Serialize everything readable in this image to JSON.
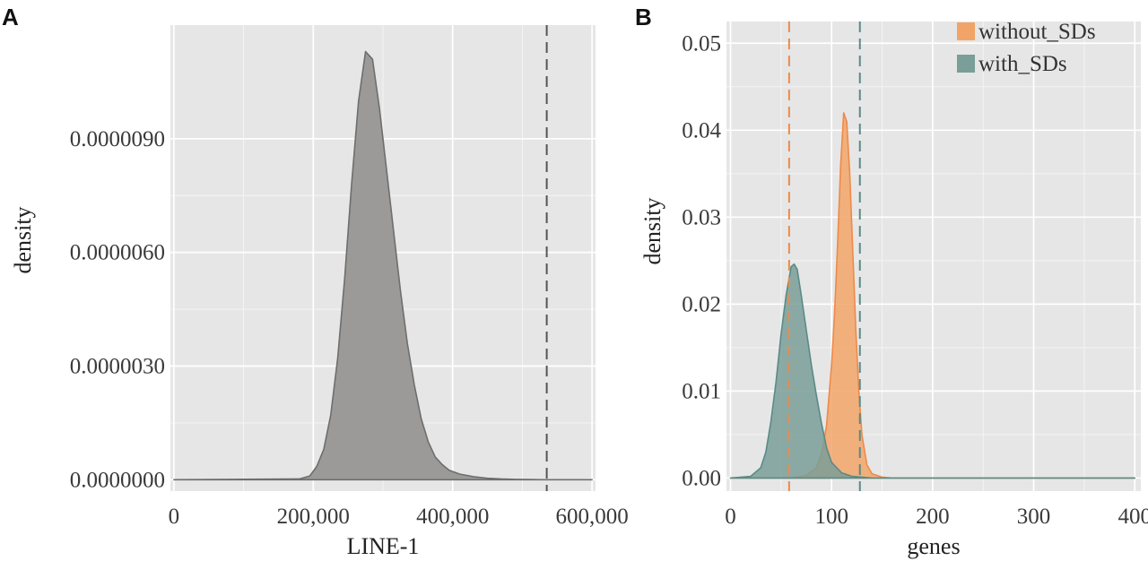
{
  "chart_data": [
    {
      "panel": "A",
      "type": "area",
      "title": "",
      "xlabel": "LINE-1",
      "ylabel": "density",
      "xlim": [
        -5000,
        605000
      ],
      "ylim": [
        -3e-07,
        1.2e-05
      ],
      "x_ticks": [
        0,
        200000,
        400000,
        600000
      ],
      "x_tick_labels": [
        "0",
        "200,000",
        "400,000",
        "600,000"
      ],
      "y_ticks": [
        0,
        3e-06,
        6e-06,
        9e-06
      ],
      "y_tick_labels": [
        "0.0000000",
        "0.0000030",
        "0.0000060",
        "0.0000090"
      ],
      "grid": true,
      "colors": {
        "fill": "#9b9a98",
        "line": "#6e6e6e",
        "vline": "#555555"
      },
      "vline": 535000,
      "series": [
        {
          "x": [
            0,
            180000,
            195000,
            205000,
            215000,
            225000,
            235000,
            245000,
            255000,
            265000,
            275000,
            285000,
            295000,
            305000,
            315000,
            325000,
            335000,
            345000,
            355000,
            365000,
            375000,
            385000,
            395000,
            410000,
            430000,
            450000,
            470000,
            490000,
            510000,
            530000,
            600000
          ],
          "y": [
            0,
            2e-08,
            1e-07,
            3.5e-07,
            8e-07,
            1.7e-06,
            3.2e-06,
            5.3e-06,
            7.8e-06,
            1e-05,
            1.13e-05,
            1.11e-05,
            9.8e-06,
            8.2e-06,
            6.6e-06,
            5e-06,
            3.6e-06,
            2.5e-06,
            1.6e-06,
            1e-06,
            6e-07,
            4e-07,
            2.5e-07,
            1.5e-07,
            8e-08,
            4e-08,
            2e-08,
            1e-08,
            5e-09,
            0,
            0
          ]
        }
      ]
    },
    {
      "panel": "B",
      "type": "area",
      "title": "",
      "xlabel": "genes",
      "ylabel": "density",
      "xlim": [
        -4,
        406
      ],
      "ylim": [
        -0.0015,
        0.0525
      ],
      "x_ticks": [
        0,
        100,
        200,
        300,
        400
      ],
      "x_tick_labels": [
        "0",
        "100",
        "200",
        "300",
        "400"
      ],
      "y_ticks": [
        0,
        0.01,
        0.02,
        0.03,
        0.04,
        0.05
      ],
      "y_tick_labels": [
        "0.00",
        "0.01",
        "0.02",
        "0.03",
        "0.04",
        "0.05"
      ],
      "grid": true,
      "legend": {
        "position": "top-right"
      },
      "series": [
        {
          "name": "without_SDs",
          "color": "#f2a468",
          "line": "#ee8a48",
          "vline": 58,
          "x": [
            0,
            60,
            75,
            85,
            90,
            95,
            100,
            103,
            106,
            109,
            112,
            115,
            118,
            121,
            124,
            127,
            130,
            135,
            140,
            150,
            160,
            400
          ],
          "y": [
            0,
            0,
            0.0003,
            0.0012,
            0.0028,
            0.006,
            0.013,
            0.019,
            0.027,
            0.036,
            0.042,
            0.041,
            0.035,
            0.026,
            0.017,
            0.01,
            0.005,
            0.0015,
            0.0005,
            0.0001,
            0,
            0
          ]
        },
        {
          "name": "with_SDs",
          "color": "#7a9e98",
          "line": "#5a8a86",
          "vline": 128,
          "x": [
            0,
            20,
            30,
            35,
            40,
            45,
            50,
            55,
            60,
            63,
            66,
            70,
            75,
            80,
            85,
            90,
            95,
            100,
            110,
            120,
            130,
            140,
            400
          ],
          "y": [
            0,
            0.0002,
            0.0012,
            0.003,
            0.0065,
            0.011,
            0.0165,
            0.021,
            0.0243,
            0.0246,
            0.024,
            0.021,
            0.017,
            0.013,
            0.0095,
            0.0063,
            0.0035,
            0.0018,
            0.0006,
            0.0002,
            0.0001,
            0,
            0
          ]
        }
      ]
    }
  ]
}
